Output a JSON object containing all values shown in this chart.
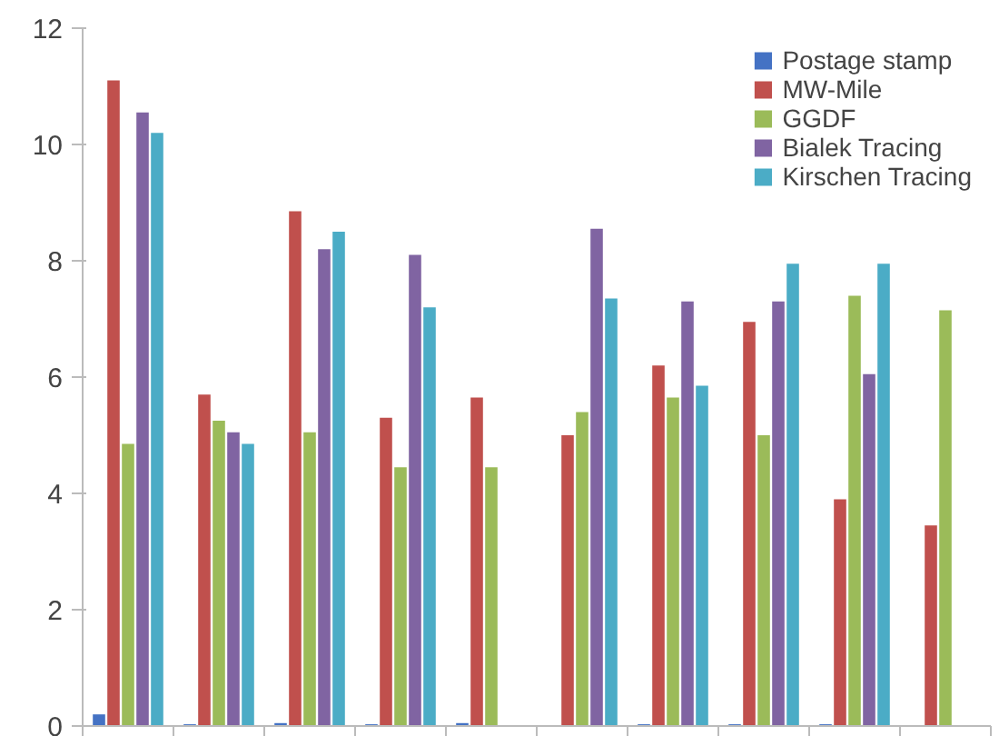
{
  "chart_data": {
    "type": "bar",
    "categories": [
      null,
      null,
      null,
      null,
      null,
      null,
      null,
      null,
      null,
      null
    ],
    "ylim": [
      0,
      12
    ],
    "yticks": [
      0,
      2,
      4,
      6,
      8,
      10,
      12
    ],
    "grid": false,
    "legend": "top right",
    "series": [
      {
        "name": "Postage stamp",
        "color": "#4472c4",
        "values": [
          0.2,
          0.03,
          0.05,
          0.03,
          0.05,
          null,
          0.03,
          0.03,
          0.03,
          null
        ]
      },
      {
        "name": "MW-Mile",
        "color": "#c0504d",
        "values": [
          11.1,
          5.7,
          8.85,
          5.3,
          5.65,
          5.0,
          6.2,
          6.95,
          3.9,
          3.45
        ]
      },
      {
        "name": "GGDF",
        "color": "#9bbb59",
        "values": [
          4.85,
          5.25,
          5.05,
          4.45,
          4.45,
          5.4,
          5.65,
          5.0,
          7.4,
          7.15
        ]
      },
      {
        "name": "Bialek Tracing",
        "color": "#8064a2",
        "values": [
          10.55,
          5.05,
          8.2,
          8.1,
          null,
          8.55,
          7.3,
          7.3,
          6.05,
          null
        ]
      },
      {
        "name": "Kirschen Tracing",
        "color": "#4bacc6",
        "values": [
          10.2,
          4.85,
          8.5,
          7.2,
          null,
          7.35,
          5.85,
          7.95,
          7.95,
          null
        ]
      }
    ]
  }
}
